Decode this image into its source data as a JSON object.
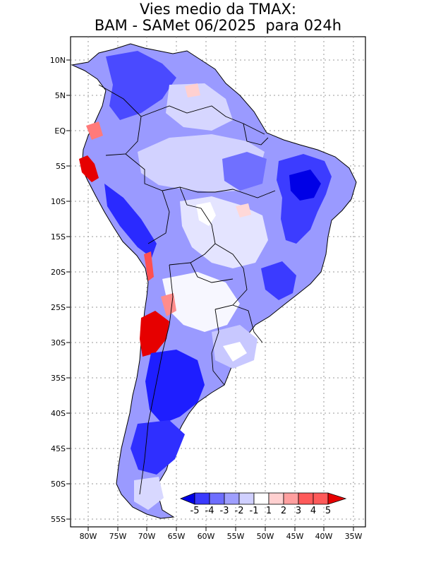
{
  "title": {
    "line1": "Vies medio da TMAX:",
    "line2": "BAM - SAMet 06/2025  para 024h"
  },
  "map": {
    "region": "South America",
    "lon_range": [
      -83,
      -35
    ],
    "lat_range": [
      -56,
      14
    ],
    "x_ticks": [
      "80W",
      "75W",
      "70W",
      "65W",
      "60W",
      "55W",
      "50W",
      "45W",
      "40W",
      "35W"
    ],
    "y_ticks": [
      "10N",
      "5N",
      "EQ",
      "5S",
      "10S",
      "15S",
      "20S",
      "25S",
      "30S",
      "35S",
      "40S",
      "45S",
      "50S",
      "55S"
    ],
    "colorbar": {
      "labels": [
        "-5",
        "-4",
        "-3",
        "-2",
        "-1",
        "1",
        "2",
        "3",
        "4",
        "5"
      ],
      "colors": [
        "#0000e6",
        "#3a3aff",
        "#6e6eff",
        "#9f9fff",
        "#d0d0ff",
        "#ffffff",
        "#ffd0d0",
        "#ff9f9f",
        "#ff5a5a",
        "#e60000"
      ]
    }
  }
}
